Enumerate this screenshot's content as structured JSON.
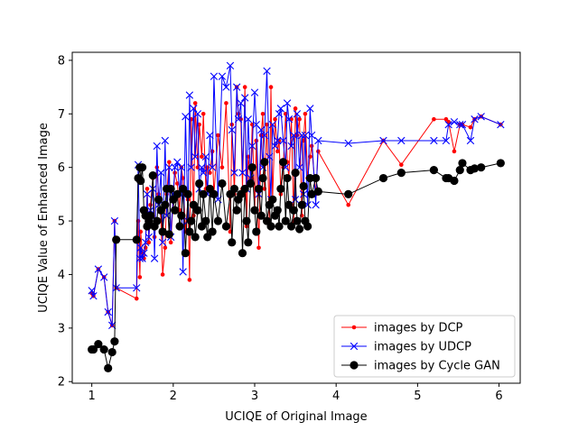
{
  "chart_data": {
    "type": "line",
    "xlabel": "UCIQE of Original Image",
    "ylabel": "UCIQE Value of Enhanced Image",
    "xlim": [
      0.76,
      6.26
    ],
    "ylim": [
      1.97,
      8.15
    ],
    "xticks": [
      1,
      2,
      3,
      4,
      5,
      6
    ],
    "yticks": [
      2,
      3,
      4,
      5,
      6,
      7,
      8
    ],
    "grid": false,
    "legend_position": "lower-right",
    "x": [
      1.0,
      1.02,
      1.08,
      1.15,
      1.2,
      1.25,
      1.28,
      1.3,
      1.55,
      1.57,
      1.59,
      1.6,
      1.62,
      1.64,
      1.66,
      1.68,
      1.7,
      1.72,
      1.75,
      1.77,
      1.8,
      1.82,
      1.85,
      1.87,
      1.9,
      1.92,
      1.95,
      1.97,
      2.0,
      2.02,
      2.05,
      2.08,
      2.1,
      2.12,
      2.15,
      2.18,
      2.2,
      2.22,
      2.25,
      2.27,
      2.3,
      2.32,
      2.35,
      2.37,
      2.4,
      2.42,
      2.45,
      2.48,
      2.5,
      2.55,
      2.6,
      2.65,
      2.7,
      2.72,
      2.75,
      2.78,
      2.8,
      2.83,
      2.85,
      2.88,
      2.9,
      2.92,
      2.95,
      2.97,
      3.0,
      3.02,
      3.05,
      3.08,
      3.1,
      3.12,
      3.15,
      3.18,
      3.2,
      3.22,
      3.25,
      3.28,
      3.3,
      3.32,
      3.35,
      3.38,
      3.4,
      3.42,
      3.45,
      3.48,
      3.5,
      3.52,
      3.55,
      3.58,
      3.6,
      3.62,
      3.65,
      3.68,
      3.7,
      3.75,
      3.78,
      4.15,
      4.58,
      4.8,
      5.2,
      5.35,
      5.38,
      5.45,
      5.52,
      5.55,
      5.65,
      5.7,
      5.78,
      6.02
    ],
    "series": [
      {
        "name": "images by DCP",
        "color": "#ff0000",
        "marker": "dot",
        "values": [
          3.65,
          3.6,
          4.1,
          3.95,
          3.3,
          3.05,
          5.0,
          3.75,
          3.55,
          5.0,
          3.95,
          4.8,
          4.4,
          4.3,
          4.5,
          5.6,
          4.6,
          5.3,
          5.8,
          4.7,
          6.0,
          5.5,
          5.0,
          4.0,
          4.5,
          5.5,
          6.1,
          4.6,
          5.4,
          5.9,
          5.7,
          5.2,
          6.0,
          5.8,
          4.8,
          5.4,
          3.9,
          6.9,
          5.1,
          7.2,
          6.0,
          6.8,
          6.2,
          7.0,
          5.6,
          6.0,
          5.9,
          6.3,
          5.5,
          6.6,
          6.0,
          7.2,
          4.8,
          6.8,
          5.5,
          7.5,
          7.0,
          6.9,
          5.6,
          7.5,
          4.9,
          6.2,
          5.8,
          6.8,
          5.2,
          6.5,
          4.5,
          6.6,
          7.0,
          5.6,
          6.8,
          5.0,
          7.5,
          5.4,
          6.9,
          6.3,
          6.5,
          5.5,
          6.0,
          7.0,
          6.1,
          5.8,
          6.9,
          5.0,
          7.1,
          6.6,
          6.9,
          5.1,
          6.5,
          7.0,
          5.8,
          6.2,
          6.4,
          5.5,
          6.3,
          5.3,
          6.5,
          6.05,
          6.9,
          6.9,
          6.85,
          6.3,
          6.8,
          6.8,
          6.75,
          6.9,
          6.95,
          6.8
        ]
      },
      {
        "name": "images by UDCP",
        "color": "#0000ff",
        "marker": "x",
        "values": [
          3.7,
          3.6,
          4.1,
          3.95,
          3.3,
          3.05,
          5.0,
          3.75,
          3.75,
          6.05,
          4.3,
          4.5,
          4.3,
          4.4,
          4.6,
          5.5,
          4.7,
          5.2,
          5.6,
          4.3,
          6.4,
          5.3,
          5.9,
          4.6,
          6.5,
          5.1,
          6.0,
          4.7,
          5.5,
          6.0,
          6.1,
          5.5,
          6.0,
          4.05,
          6.95,
          5.0,
          7.35,
          6.0,
          7.1,
          6.2,
          7.0,
          5.6,
          6.0,
          5.9,
          6.2,
          5.5,
          6.6,
          6.0,
          7.7,
          5.4,
          7.7,
          7.5,
          7.9,
          6.7,
          5.9,
          7.5,
          6.9,
          7.2,
          5.9,
          7.3,
          5.6,
          6.9,
          5.8,
          6.4,
          7.4,
          6.8,
          5.5,
          6.7,
          6.0,
          6.6,
          7.8,
          6.2,
          5.4,
          6.8,
          6.4,
          6.5,
          7.0,
          7.1,
          6.5,
          6.0,
          7.2,
          6.9,
          6.4,
          6.6,
          5.4,
          7.0,
          6.0,
          6.6,
          5.5,
          6.6,
          5.3,
          7.1,
          6.6,
          5.3,
          6.5,
          6.45,
          6.5,
          6.5,
          6.5,
          6.5,
          6.8,
          6.85,
          6.8,
          6.8,
          6.5,
          6.9,
          6.95,
          6.8
        ]
      },
      {
        "name": "images by Cycle GAN",
        "color": "#000000",
        "marker": "circle",
        "values": [
          2.6,
          2.6,
          2.7,
          2.6,
          2.25,
          2.55,
          2.75,
          4.65,
          4.65,
          5.8,
          6.0,
          5.75,
          6.0,
          5.2,
          5.1,
          4.9,
          5.0,
          5.1,
          5.85,
          4.9,
          5.0,
          5.4,
          5.2,
          4.8,
          5.3,
          5.6,
          4.75,
          5.6,
          5.4,
          5.2,
          5.5,
          4.9,
          5.1,
          5.6,
          4.4,
          5.5,
          4.8,
          5.0,
          5.3,
          4.7,
          5.2,
          5.7,
          4.9,
          5.5,
          5.0,
          4.7,
          5.6,
          4.8,
          5.5,
          5.0,
          5.7,
          4.9,
          5.5,
          4.6,
          5.6,
          5.2,
          5.4,
          5.5,
          4.4,
          5.6,
          5.0,
          4.6,
          5.7,
          6.0,
          5.2,
          4.8,
          5.6,
          5.1,
          5.8,
          6.1,
          5.0,
          5.3,
          4.9,
          5.4,
          5.1,
          5.2,
          4.9,
          5.6,
          6.1,
          5.0,
          5.8,
          5.3,
          4.9,
          5.2,
          5.9,
          5.0,
          4.85,
          5.3,
          5.65,
          5.0,
          4.9,
          5.8,
          5.5,
          5.8,
          5.55,
          5.5,
          5.8,
          5.9,
          5.95,
          5.8,
          5.8,
          5.75,
          5.95,
          6.08,
          5.95,
          5.98,
          6.0,
          6.08
        ]
      }
    ]
  }
}
